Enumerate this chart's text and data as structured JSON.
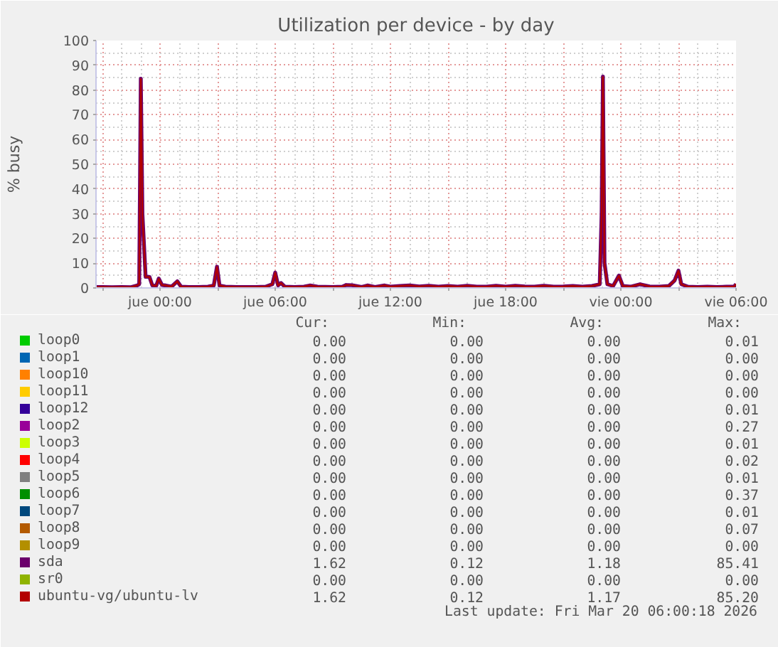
{
  "chart_data": {
    "type": "line",
    "title": "Utilization per device - by day",
    "ylabel": "% busy",
    "xlim": [
      "2026-03-18T20:40",
      "2026-03-20T06:00"
    ],
    "ylim": [
      0,
      100
    ],
    "xticks": [
      {
        "value": "2026-03-18T21:00",
        "label": null
      },
      {
        "value": "2026-03-19T00:00",
        "label": "jue 00:00"
      },
      {
        "value": "2026-03-19T03:00",
        "label": null
      },
      {
        "value": "2026-03-19T06:00",
        "label": "jue 06:00"
      },
      {
        "value": "2026-03-19T09:00",
        "label": null
      },
      {
        "value": "2026-03-19T12:00",
        "label": "jue 12:00"
      },
      {
        "value": "2026-03-19T15:00",
        "label": null
      },
      {
        "value": "2026-03-19T18:00",
        "label": "jue 18:00"
      },
      {
        "value": "2026-03-19T21:00",
        "label": null
      },
      {
        "value": "2026-03-20T00:00",
        "label": "vie 00:00"
      },
      {
        "value": "2026-03-20T03:00",
        "label": null
      },
      {
        "value": "2026-03-20T06:00",
        "label": "vie 06:00"
      }
    ],
    "yticks": [
      0,
      10,
      20,
      30,
      40,
      50,
      60,
      70,
      80,
      90,
      100
    ],
    "grid": true,
    "legend": "bottom",
    "line_style": "solid",
    "x": [
      "2026-03-18T20:42",
      "2026-03-18T21:00",
      "2026-03-18T21:30",
      "2026-03-18T22:00",
      "2026-03-18T22:30",
      "2026-03-18T22:48",
      "2026-03-18T22:55",
      "2026-03-18T23:00",
      "2026-03-18T23:05",
      "2026-03-18T23:15",
      "2026-03-18T23:27",
      "2026-03-18T23:36",
      "2026-03-18T23:48",
      "2026-03-18T23:56",
      "2026-03-19T00:06",
      "2026-03-19T00:18",
      "2026-03-19T00:36",
      "2026-03-19T00:54",
      "2026-03-19T01:06",
      "2026-03-19T01:30",
      "2026-03-19T02:00",
      "2026-03-19T02:30",
      "2026-03-19T02:48",
      "2026-03-19T02:58",
      "2026-03-19T03:06",
      "2026-03-19T03:24",
      "2026-03-19T04:00",
      "2026-03-19T04:30",
      "2026-03-19T05:00",
      "2026-03-19T05:30",
      "2026-03-19T05:51",
      "2026-03-19T06:00",
      "2026-03-19T06:09",
      "2026-03-19T06:18",
      "2026-03-19T06:30",
      "2026-03-19T07:00",
      "2026-03-19T07:30",
      "2026-03-19T07:48",
      "2026-03-19T08:12",
      "2026-03-19T09:00",
      "2026-03-19T09:30",
      "2026-03-19T09:42",
      "2026-03-19T10:00",
      "2026-03-19T10:30",
      "2026-03-19T10:48",
      "2026-03-19T11:12",
      "2026-03-19T11:42",
      "2026-03-19T12:00",
      "2026-03-19T12:30",
      "2026-03-19T13:00",
      "2026-03-19T13:30",
      "2026-03-19T14:00",
      "2026-03-19T14:30",
      "2026-03-19T15:00",
      "2026-03-19T15:30",
      "2026-03-19T16:00",
      "2026-03-19T16:30",
      "2026-03-19T17:00",
      "2026-03-19T17:30",
      "2026-03-19T18:00",
      "2026-03-19T18:30",
      "2026-03-19T19:00",
      "2026-03-19T19:30",
      "2026-03-19T20:00",
      "2026-03-19T20:30",
      "2026-03-19T21:00",
      "2026-03-19T21:30",
      "2026-03-19T22:00",
      "2026-03-19T22:30",
      "2026-03-19T22:54",
      "2026-03-19T23:00",
      "2026-03-19T23:04",
      "2026-03-19T23:09",
      "2026-03-19T23:18",
      "2026-03-19T23:36",
      "2026-03-19T23:54",
      "2026-03-20T00:06",
      "2026-03-20T00:30",
      "2026-03-20T01:00",
      "2026-03-20T01:30",
      "2026-03-20T02:00",
      "2026-03-20T02:30",
      "2026-03-20T02:48",
      "2026-03-20T03:00",
      "2026-03-20T03:09",
      "2026-03-20T03:30",
      "2026-03-20T04:00",
      "2026-03-20T04:30",
      "2026-03-20T05:00",
      "2026-03-20T05:30",
      "2026-03-20T05:54",
      "2026-03-20T06:00"
    ],
    "series": [
      {
        "name": "loop0",
        "color": "#00cc00",
        "values": [
          null,
          null,
          null,
          null,
          null,
          null,
          null,
          null,
          null,
          null,
          null,
          null,
          null,
          null,
          null,
          null,
          null,
          null,
          null,
          null,
          null,
          null,
          null,
          null,
          null,
          null,
          null,
          null,
          null,
          null,
          null,
          null,
          null,
          null,
          null,
          null,
          null,
          null,
          null,
          null,
          null,
          null,
          null,
          null,
          null,
          null,
          null,
          null,
          null,
          null,
          null,
          null,
          null,
          null,
          null,
          null,
          null,
          null,
          null,
          null,
          null,
          null,
          null,
          null,
          null,
          null,
          null,
          null,
          null,
          null,
          null,
          null,
          null,
          null,
          null,
          null,
          null,
          null,
          null,
          null,
          null,
          null,
          null,
          null,
          null,
          null,
          null,
          null,
          null,
          null,
          null,
          null
        ]
      },
      {
        "name": "loop1",
        "color": "#0066b3",
        "values": [
          null,
          null,
          null,
          null,
          null,
          null,
          null,
          null,
          null,
          null,
          null,
          null,
          null,
          null,
          null,
          null,
          null,
          null,
          null,
          null,
          null,
          null,
          null,
          null,
          null,
          null,
          null,
          null,
          null,
          null,
          null,
          null,
          null,
          null,
          null,
          null,
          null,
          null,
          null,
          null,
          null,
          null,
          null,
          null,
          null,
          null,
          null,
          null,
          null,
          null,
          null,
          null,
          null,
          null,
          null,
          null,
          null,
          null,
          null,
          null,
          null,
          null,
          null,
          null,
          null,
          null,
          null,
          null,
          null,
          null,
          null,
          null,
          null,
          null,
          null,
          null,
          null,
          null,
          null,
          null,
          null,
          null,
          null,
          null,
          null,
          null,
          null,
          null,
          null,
          null,
          null,
          null
        ]
      },
      {
        "name": "loop10",
        "color": "#ff8000",
        "values": [
          null,
          null,
          null,
          null,
          null,
          null,
          null,
          null,
          null,
          null,
          null,
          null,
          null,
          null,
          null,
          null,
          null,
          null,
          null,
          null,
          null,
          null,
          null,
          null,
          null,
          null,
          null,
          null,
          null,
          null,
          null,
          null,
          null,
          null,
          null,
          null,
          null,
          null,
          null,
          null,
          null,
          null,
          null,
          null,
          null,
          null,
          null,
          null,
          null,
          null,
          null,
          null,
          null,
          null,
          null,
          null,
          null,
          null,
          null,
          null,
          null,
          null,
          null,
          null,
          null,
          null,
          null,
          null,
          null,
          null,
          null,
          null,
          null,
          null,
          null,
          null,
          null,
          null,
          null,
          null,
          null,
          null,
          null,
          null,
          null,
          null,
          null,
          null,
          null,
          null,
          null,
          null
        ]
      },
      {
        "name": "loop11",
        "color": "#ffcc00",
        "values": [
          null,
          null,
          null,
          null,
          null,
          null,
          null,
          null,
          null,
          null,
          null,
          null,
          null,
          null,
          null,
          null,
          null,
          null,
          null,
          null,
          null,
          null,
          null,
          null,
          null,
          null,
          null,
          null,
          null,
          null,
          null,
          null,
          null,
          null,
          null,
          null,
          null,
          null,
          null,
          null,
          null,
          null,
          null,
          null,
          null,
          null,
          null,
          null,
          null,
          null,
          null,
          null,
          null,
          null,
          null,
          null,
          null,
          null,
          null,
          null,
          null,
          null,
          null,
          null,
          null,
          null,
          null,
          null,
          null,
          null,
          null,
          null,
          null,
          null,
          null,
          null,
          null,
          null,
          null,
          null,
          null,
          null,
          null,
          null,
          null,
          null,
          null,
          null,
          null,
          null,
          null,
          null
        ]
      },
      {
        "name": "loop12",
        "color": "#330099",
        "values": [
          null,
          null,
          null,
          null,
          null,
          null,
          null,
          null,
          null,
          null,
          null,
          null,
          null,
          null,
          null,
          null,
          null,
          null,
          null,
          null,
          null,
          null,
          null,
          null,
          null,
          null,
          null,
          null,
          null,
          null,
          null,
          null,
          null,
          null,
          null,
          null,
          null,
          null,
          null,
          null,
          null,
          null,
          null,
          null,
          null,
          null,
          null,
          null,
          null,
          null,
          null,
          null,
          null,
          null,
          null,
          null,
          null,
          null,
          null,
          null,
          null,
          null,
          null,
          null,
          null,
          null,
          null,
          null,
          null,
          null,
          null,
          null,
          null,
          null,
          null,
          null,
          null,
          null,
          null,
          null,
          null,
          null,
          null,
          null,
          null,
          null,
          null,
          null,
          null,
          null,
          null,
          null
        ]
      },
      {
        "name": "loop2",
        "color": "#990099",
        "values": [
          null,
          null,
          null,
          null,
          null,
          null,
          null,
          null,
          null,
          null,
          null,
          null,
          null,
          null,
          null,
          null,
          null,
          null,
          null,
          null,
          null,
          null,
          null,
          null,
          null,
          null,
          null,
          null,
          null,
          null,
          null,
          null,
          null,
          null,
          null,
          null,
          null,
          null,
          null,
          null,
          null,
          null,
          null,
          null,
          null,
          null,
          null,
          null,
          null,
          null,
          null,
          null,
          null,
          null,
          null,
          null,
          null,
          null,
          null,
          null,
          null,
          null,
          null,
          null,
          null,
          null,
          null,
          null,
          null,
          null,
          null,
          null,
          null,
          null,
          null,
          null,
          null,
          null,
          null,
          null,
          null,
          null,
          null,
          null,
          null,
          null,
          null,
          null,
          null,
          null,
          null,
          null
        ]
      },
      {
        "name": "loop3",
        "color": "#ccff00",
        "values": [
          null,
          null,
          null,
          null,
          null,
          null,
          null,
          null,
          null,
          null,
          null,
          null,
          null,
          null,
          null,
          null,
          null,
          null,
          null,
          null,
          null,
          null,
          null,
          null,
          null,
          null,
          null,
          null,
          null,
          null,
          null,
          null,
          null,
          null,
          null,
          null,
          null,
          null,
          null,
          null,
          null,
          null,
          null,
          null,
          null,
          null,
          null,
          null,
          null,
          null,
          null,
          null,
          null,
          null,
          null,
          null,
          null,
          null,
          null,
          null,
          null,
          null,
          null,
          null,
          null,
          null,
          null,
          null,
          null,
          null,
          null,
          null,
          null,
          null,
          null,
          null,
          null,
          null,
          null,
          null,
          null,
          null,
          null,
          null,
          null,
          null,
          null,
          null,
          null,
          null,
          null,
          null
        ]
      },
      {
        "name": "loop4",
        "color": "#ff0000",
        "values": [
          null,
          null,
          null,
          null,
          null,
          null,
          null,
          null,
          null,
          null,
          null,
          null,
          null,
          null,
          null,
          null,
          null,
          null,
          null,
          null,
          null,
          null,
          null,
          null,
          null,
          null,
          null,
          null,
          null,
          null,
          null,
          null,
          null,
          null,
          null,
          null,
          null,
          null,
          null,
          null,
          null,
          null,
          null,
          null,
          null,
          null,
          null,
          null,
          null,
          null,
          null,
          null,
          null,
          null,
          null,
          null,
          null,
          null,
          null,
          null,
          null,
          null,
          null,
          null,
          null,
          null,
          null,
          null,
          null,
          null,
          null,
          null,
          null,
          null,
          null,
          null,
          null,
          null,
          null,
          null,
          null,
          null,
          null,
          null,
          null,
          null,
          null,
          null,
          null,
          null,
          null,
          null
        ]
      },
      {
        "name": "loop5",
        "color": "#808080",
        "values": [
          null,
          null,
          null,
          null,
          null,
          null,
          null,
          null,
          null,
          null,
          null,
          null,
          null,
          null,
          null,
          null,
          null,
          null,
          null,
          null,
          null,
          null,
          null,
          null,
          null,
          null,
          null,
          null,
          null,
          null,
          null,
          null,
          null,
          null,
          null,
          null,
          null,
          null,
          null,
          null,
          null,
          null,
          null,
          null,
          null,
          null,
          null,
          null,
          null,
          null,
          null,
          null,
          null,
          null,
          null,
          null,
          null,
          null,
          null,
          null,
          null,
          null,
          null,
          null,
          null,
          null,
          null,
          null,
          null,
          null,
          null,
          null,
          null,
          null,
          null,
          null,
          null,
          null,
          null,
          null,
          null,
          null,
          null,
          null,
          null,
          null,
          null,
          null,
          null,
          null,
          null,
          null
        ]
      },
      {
        "name": "loop6",
        "color": "#008f00",
        "values": [
          null,
          null,
          null,
          null,
          null,
          null,
          null,
          null,
          null,
          null,
          null,
          null,
          null,
          null,
          null,
          null,
          null,
          null,
          null,
          null,
          null,
          null,
          null,
          null,
          null,
          null,
          null,
          null,
          null,
          null,
          null,
          null,
          null,
          null,
          null,
          null,
          null,
          null,
          null,
          null,
          null,
          null,
          null,
          null,
          null,
          null,
          null,
          null,
          null,
          null,
          null,
          null,
          null,
          null,
          null,
          null,
          null,
          null,
          null,
          null,
          null,
          null,
          null,
          null,
          null,
          null,
          null,
          null,
          null,
          null,
          null,
          null,
          null,
          null,
          null,
          null,
          null,
          null,
          null,
          null,
          null,
          null,
          null,
          null,
          null,
          null,
          null,
          null,
          null,
          null,
          null,
          null
        ]
      },
      {
        "name": "loop7",
        "color": "#00487d",
        "values": [
          null,
          null,
          null,
          null,
          null,
          null,
          null,
          null,
          null,
          null,
          null,
          null,
          null,
          null,
          null,
          null,
          null,
          null,
          null,
          null,
          null,
          null,
          null,
          null,
          null,
          null,
          null,
          null,
          null,
          null,
          null,
          null,
          null,
          null,
          null,
          null,
          null,
          null,
          null,
          null,
          null,
          null,
          null,
          null,
          null,
          null,
          null,
          null,
          null,
          null,
          null,
          null,
          null,
          null,
          null,
          null,
          null,
          null,
          null,
          null,
          null,
          null,
          null,
          null,
          null,
          null,
          null,
          null,
          null,
          null,
          null,
          null,
          null,
          null,
          null,
          null,
          null,
          null,
          null,
          null,
          null,
          null,
          null,
          null,
          null,
          null,
          null,
          null,
          null,
          null,
          null,
          null
        ]
      },
      {
        "name": "loop8",
        "color": "#b35a00",
        "values": [
          null,
          null,
          null,
          null,
          null,
          null,
          null,
          null,
          null,
          null,
          null,
          null,
          null,
          null,
          null,
          null,
          null,
          null,
          null,
          null,
          null,
          null,
          null,
          null,
          null,
          null,
          null,
          null,
          null,
          null,
          null,
          null,
          null,
          null,
          null,
          null,
          null,
          null,
          null,
          null,
          null,
          null,
          null,
          null,
          null,
          null,
          null,
          null,
          null,
          null,
          null,
          null,
          null,
          null,
          null,
          null,
          null,
          null,
          null,
          null,
          null,
          null,
          null,
          null,
          null,
          null,
          null,
          null,
          null,
          null,
          null,
          null,
          null,
          null,
          null,
          null,
          null,
          null,
          null,
          null,
          null,
          null,
          null,
          null,
          null,
          null,
          null,
          null,
          null,
          null,
          null,
          null
        ]
      },
      {
        "name": "loop9",
        "color": "#b38f00",
        "values": [
          null,
          null,
          null,
          null,
          null,
          null,
          null,
          null,
          null,
          null,
          null,
          null,
          null,
          null,
          null,
          null,
          null,
          null,
          null,
          null,
          null,
          null,
          null,
          null,
          null,
          null,
          null,
          null,
          null,
          null,
          null,
          null,
          null,
          null,
          null,
          null,
          null,
          null,
          null,
          null,
          null,
          null,
          null,
          null,
          null,
          null,
          null,
          null,
          null,
          null,
          null,
          null,
          null,
          null,
          null,
          null,
          null,
          null,
          null,
          null,
          null,
          null,
          null,
          null,
          null,
          null,
          null,
          null,
          null,
          null,
          null,
          null,
          null,
          null,
          null,
          null,
          null,
          null,
          null,
          null,
          null,
          null,
          null,
          null,
          null,
          null,
          null,
          null,
          null,
          null,
          null,
          null
        ]
      },
      {
        "name": "sda",
        "color": "#6b006b",
        "values": [
          0.4,
          0.4,
          0.3,
          0.4,
          0.3,
          1.0,
          1.5,
          84.6,
          30,
          4.5,
          4.5,
          1.0,
          0.8,
          3.8,
          1.2,
          1.0,
          0.5,
          2.7,
          0.5,
          0.4,
          0.4,
          0.5,
          1.0,
          8.6,
          1.0,
          0.5,
          0.4,
          0.4,
          0.4,
          0.5,
          1.5,
          6.2,
          1.0,
          2.0,
          0.5,
          0.4,
          0.5,
          1.0,
          0.5,
          0.4,
          0.5,
          1.2,
          1.1,
          0.4,
          1.0,
          0.4,
          1.0,
          0.5,
          0.8,
          1.0,
          0.6,
          0.9,
          0.5,
          0.8,
          0.5,
          0.9,
          0.5,
          0.5,
          0.9,
          0.5,
          0.9,
          0.6,
          0.5,
          0.9,
          0.5,
          0.6,
          0.8,
          0.5,
          0.8,
          1.5,
          30,
          85.4,
          10,
          1.5,
          0.8,
          5.0,
          0.8,
          0.5,
          1.5,
          0.6,
          0.5,
          0.8,
          3.0,
          7.0,
          1.5,
          0.5,
          0.4,
          0.5,
          0.4,
          0.5,
          0.5,
          1.6
        ]
      },
      {
        "name": "sr0",
        "color": "#8fb300",
        "values": [
          null,
          null,
          null,
          null,
          null,
          null,
          null,
          null,
          null,
          null,
          null,
          null,
          null,
          null,
          null,
          null,
          null,
          null,
          null,
          null,
          null,
          null,
          null,
          null,
          null,
          null,
          null,
          null,
          null,
          null,
          null,
          null,
          null,
          null,
          null,
          null,
          null,
          null,
          null,
          null,
          null,
          null,
          null,
          null,
          null,
          null,
          null,
          null,
          null,
          null,
          null,
          null,
          null,
          null,
          null,
          null,
          null,
          null,
          null,
          null,
          null,
          null,
          null,
          null,
          null,
          null,
          null,
          null,
          null,
          null,
          null,
          null,
          null,
          null,
          null,
          null,
          null,
          null,
          null,
          null,
          null,
          null,
          null,
          null,
          null,
          null,
          null,
          null,
          null,
          null,
          null,
          null
        ]
      },
      {
        "name": "ubuntu-vg/ubuntu-lv",
        "color": "#b30000",
        "values": [
          0.4,
          0.4,
          0.3,
          0.4,
          0.3,
          1.0,
          1.5,
          84.4,
          29,
          4.5,
          4.4,
          1.0,
          0.8,
          3.7,
          1.2,
          1.0,
          0.5,
          2.7,
          0.5,
          0.4,
          0.4,
          0.5,
          1.0,
          8.5,
          1.0,
          0.5,
          0.4,
          0.4,
          0.4,
          0.5,
          1.5,
          6.1,
          1.0,
          2.0,
          0.5,
          0.4,
          0.5,
          1.0,
          0.5,
          0.4,
          0.5,
          1.2,
          1.1,
          0.4,
          1.0,
          0.4,
          1.0,
          0.5,
          0.8,
          1.0,
          0.6,
          0.9,
          0.5,
          0.8,
          0.5,
          0.9,
          0.5,
          0.5,
          0.9,
          0.5,
          0.9,
          0.6,
          0.5,
          0.9,
          0.5,
          0.6,
          0.8,
          0.5,
          0.8,
          1.5,
          29,
          85.2,
          10,
          1.5,
          0.8,
          4.9,
          0.8,
          0.5,
          1.5,
          0.6,
          0.5,
          0.8,
          3.0,
          6.9,
          1.5,
          0.5,
          0.4,
          0.5,
          0.4,
          0.5,
          0.5,
          1.6
        ]
      }
    ],
    "annotations": [
      "Cur:",
      "Min:",
      "Avg:",
      "Max:",
      "0.00",
      "0.00",
      "0.00",
      "0.01",
      "0.00",
      "0.00",
      "0.00",
      "0.00",
      "0.00",
      "0.00",
      "0.00",
      "0.00",
      "0.00",
      "0.00",
      "0.00",
      "0.00",
      "0.00",
      "0.00",
      "0.00",
      "0.01",
      "0.00",
      "0.00",
      "0.00",
      "0.27",
      "0.00",
      "0.00",
      "0.00",
      "0.01",
      "0.00",
      "0.00",
      "0.00",
      "0.02",
      "0.00",
      "0.00",
      "0.00",
      "0.01",
      "0.00",
      "0.00",
      "0.00",
      "0.37",
      "0.00",
      "0.00",
      "0.00",
      "0.01",
      "0.00",
      "0.00",
      "0.00",
      "0.07",
      "0.00",
      "0.00",
      "0.00",
      "0.00",
      "1.62",
      "0.12",
      "1.18",
      "85.41",
      "0.00",
      "0.00",
      "0.00",
      "0.00",
      "1.62",
      "0.12",
      "1.17",
      "85.20",
      "Last update: Fri Mar 20 06:00:18 2026"
    ]
  }
}
